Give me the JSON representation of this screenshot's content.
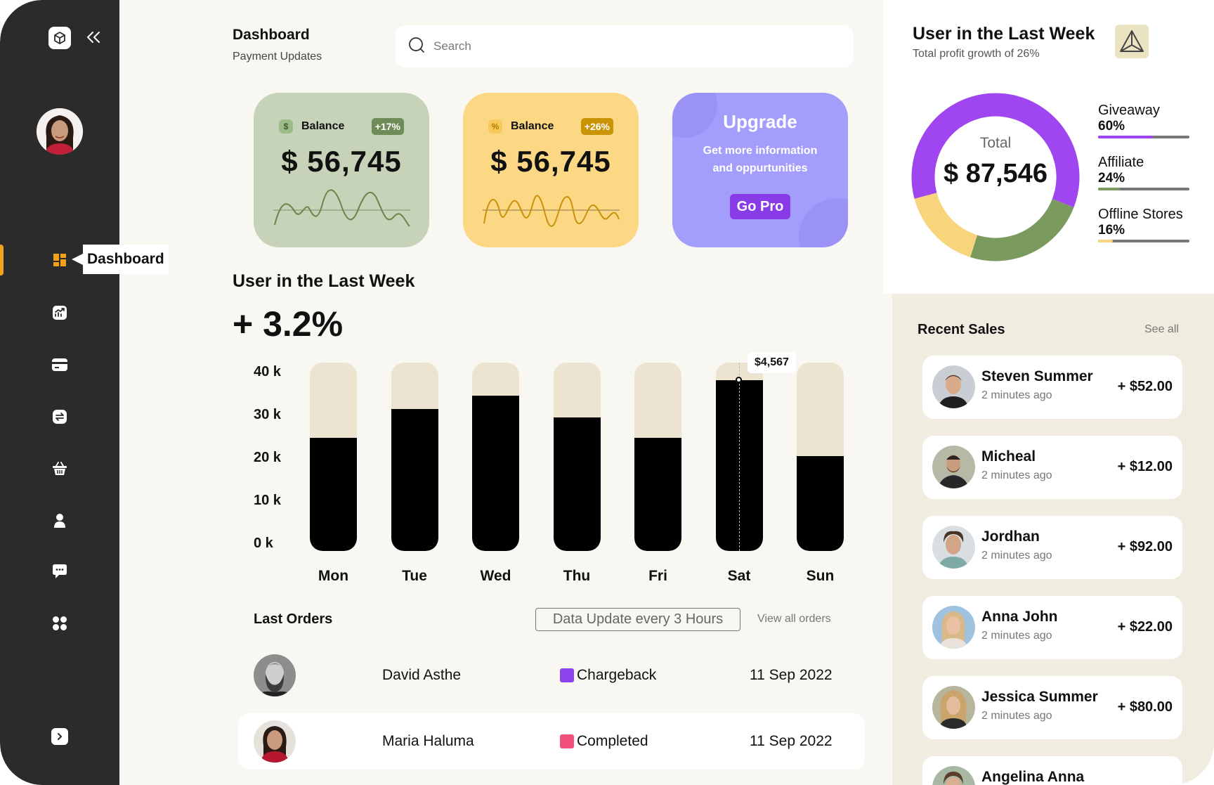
{
  "sidebar": {
    "tooltip": "Dashboard",
    "items": [
      {
        "name": "dashboard",
        "icon": "grid-icon"
      },
      {
        "name": "analytics",
        "icon": "chart-icon"
      },
      {
        "name": "cards",
        "icon": "credit-card-icon"
      },
      {
        "name": "transfers",
        "icon": "exchange-icon"
      },
      {
        "name": "shop",
        "icon": "basket-icon"
      },
      {
        "name": "users",
        "icon": "user-icon"
      },
      {
        "name": "messages",
        "icon": "chat-icon"
      },
      {
        "name": "apps",
        "icon": "apps-icon"
      }
    ],
    "accent": "#f2a11b"
  },
  "header": {
    "title": "Dashboard",
    "subtitle": "Payment Updates",
    "search_placeholder": "Search"
  },
  "cards": {
    "green": {
      "label": "Balance",
      "badge": "+17%",
      "icon_glyph": "$",
      "amount": "$ 56,745",
      "color": "#c6d3b9"
    },
    "yellow": {
      "label": "Balance",
      "badge": "+26%",
      "icon_glyph": "%",
      "amount": "$ 56,745",
      "color": "#fcd884"
    },
    "upgrade": {
      "title": "Upgrade",
      "text": "Get more information and oppurtunities",
      "button": "Go Pro",
      "color": "#a39dfb"
    }
  },
  "weekly": {
    "title": "User in the Last Week",
    "change": "+ 3.2%",
    "tooltip_label": "$4,567",
    "tooltip_index": 5
  },
  "chart_data": {
    "type": "bar",
    "title": "User in the Last Week",
    "categories": [
      "Mon",
      "Tue",
      "Wed",
      "Thu",
      "Fri",
      "Sat",
      "Sun"
    ],
    "values": [
      24000,
      30200,
      33000,
      28300,
      24000,
      36200,
      20100
    ],
    "ylim": [
      0,
      40000
    ],
    "yticks": [
      "40 k",
      "30 k",
      "20 k",
      "10 k",
      "0 k"
    ],
    "xlabel": "",
    "ylabel": ""
  },
  "orders": {
    "title": "Last Orders",
    "badge": "Data Update every 3 Hours",
    "link": "View all orders",
    "rows": [
      {
        "name": "David Asthe",
        "status": "Chargeback",
        "status_color": "#8e44ec",
        "date": "11 Sep 2022"
      },
      {
        "name": "Maria Haluma",
        "status": "Completed",
        "status_color": "#f0507a",
        "date": "11 Sep 2022"
      }
    ]
  },
  "summary": {
    "title": "User in the Last Week",
    "subtitle": "Total profit growth of 26%",
    "total_label": "Total",
    "total_value": "$ 87,546",
    "segments": [
      {
        "name": "Giveaway",
        "percent_label": "60%",
        "value": 0.6,
        "color": "#a046f0"
      },
      {
        "name": "Affiliate",
        "percent_label": "24%",
        "value": 0.24,
        "color": "#7a9a5e"
      },
      {
        "name": "Offline Stores",
        "percent_label": "16%",
        "value": 0.16,
        "color": "#f8d57c"
      }
    ]
  },
  "sales": {
    "title": "Recent Sales",
    "link": "See all",
    "items": [
      {
        "name": "Steven Summer",
        "time": "2 minutes ago",
        "amount": "+ $52.00"
      },
      {
        "name": "Micheal",
        "time": "2 minutes ago",
        "amount": "+ $12.00"
      },
      {
        "name": "Jordhan",
        "time": "2 minutes ago",
        "amount": "+ $92.00"
      },
      {
        "name": "Anna John",
        "time": "2 minutes ago",
        "amount": "+ $22.00"
      },
      {
        "name": "Jessica Summer",
        "time": "2 minutes ago",
        "amount": "+ $80.00"
      },
      {
        "name": "Angelina Anna",
        "time": "",
        "amount": ""
      }
    ]
  }
}
